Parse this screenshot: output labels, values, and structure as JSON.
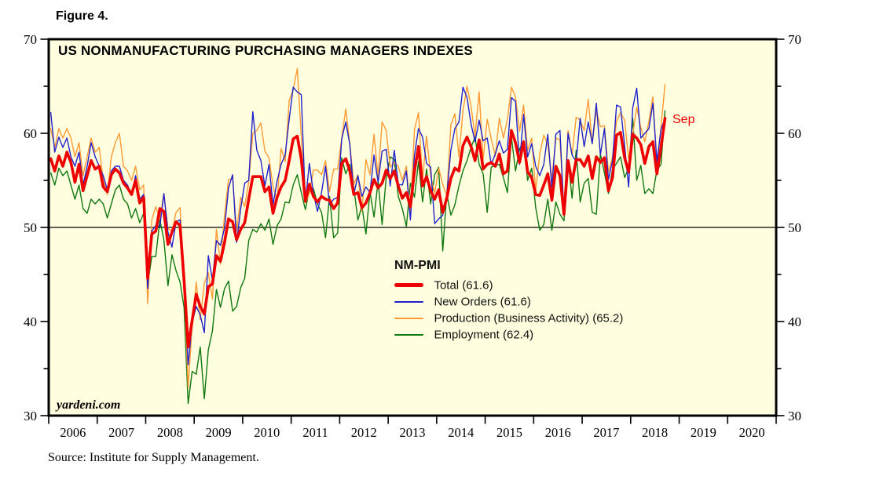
{
  "figure_label": "Figure 4.",
  "title": "US NONMANUFACTURING PURCHASING MANAGERS INDEXES",
  "watermark": "yardeni.com",
  "source": "Source: Institute for Supply Management.",
  "annotation": {
    "label": "Sep",
    "color": "#ee0000"
  },
  "legend": {
    "header": "NM-PMI",
    "entries": [
      {
        "label": "Total (61.6)",
        "color": "#ee0000",
        "thick": true
      },
      {
        "label": "New Orders (61.6)",
        "color": "#2222cc",
        "thick": false
      },
      {
        "label": "Production (Business Activity) (65.2)",
        "color": "#ff9933",
        "thick": false
      },
      {
        "label": "Employment (62.4)",
        "color": "#117711",
        "thick": false
      }
    ]
  },
  "chart_data": {
    "type": "line",
    "title": "US NONMANUFACTURING PURCHASING MANAGERS INDEXES",
    "frequency": "monthly",
    "x_start": "2006-01",
    "x_end": "2018-09",
    "n_points": 153,
    "ylim": [
      30,
      70
    ],
    "yticks_major": [
      30,
      40,
      50,
      60,
      70
    ],
    "yticks_minor": [
      35,
      45,
      55,
      65
    ],
    "x_years": [
      2006,
      2007,
      2008,
      2009,
      2010,
      2011,
      2012,
      2013,
      2014,
      2015,
      2016,
      2017,
      2018,
      2019,
      2020
    ],
    "x_axis_end_year": 2021,
    "reference_line": 50,
    "plot_background": "#ffffe0",
    "grid": "off",
    "legend_position": "center-inside",
    "last_point_label": "Sep",
    "series": [
      {
        "name": "Employment",
        "legend_label": "Employment (62.4)",
        "color": "#117711",
        "stroke_width": 1.4,
        "last_value": 62.4,
        "values": [
          55.8,
          54.5,
          56.3,
          55.5,
          56.0,
          54.5,
          53.0,
          54.5,
          52.0,
          51.5,
          53.0,
          52.5,
          53.0,
          52.5,
          51.0,
          52.5,
          54.0,
          54.5,
          53.0,
          52.5,
          51.0,
          52.0,
          50.5,
          51.5,
          43.9,
          46.9,
          46.9,
          50.8,
          48.7,
          43.8,
          47.1,
          45.4,
          44.2,
          41.5,
          31.3,
          34.7,
          34.4,
          37.3,
          31.8,
          37.0,
          39.0,
          43.4,
          41.5,
          43.5,
          44.3,
          41.1,
          41.6,
          43.6,
          44.6,
          48.6,
          49.8,
          49.5,
          50.4,
          49.7,
          50.9,
          48.2,
          50.2,
          50.9,
          52.7,
          52.6,
          54.5,
          55.6,
          53.7,
          51.9,
          54.0,
          54.1,
          52.5,
          51.6,
          48.9,
          53.3,
          48.9,
          49.4,
          57.4,
          55.7,
          56.7,
          54.2,
          50.8,
          52.3,
          49.3,
          53.8,
          51.1,
          54.9,
          50.3,
          55.3,
          57.5,
          57.2,
          53.3,
          52.0,
          50.1,
          54.7,
          53.2,
          57.0,
          52.7,
          56.2,
          52.5,
          55.6,
          56.4,
          47.5,
          53.6,
          51.3,
          52.4,
          54.4,
          56.0,
          57.1,
          58.5,
          59.6,
          56.7,
          55.7,
          51.6,
          56.4,
          56.6,
          56.7,
          55.3,
          53.7,
          59.6,
          56.0,
          58.3,
          59.2,
          55.0,
          56.3,
          52.1,
          49.7,
          50.3,
          53.0,
          49.7,
          52.7,
          51.4,
          50.7,
          57.2,
          53.1,
          58.2,
          52.7,
          54.7,
          55.2,
          51.6,
          51.4,
          57.8,
          55.8,
          53.6,
          56.2,
          56.8,
          57.5,
          55.3,
          56.3,
          61.6,
          55.0,
          56.6,
          53.6,
          54.1,
          53.6,
          56.1,
          56.7,
          62.4
        ]
      },
      {
        "name": "Production (Business Activity)",
        "legend_label": "Production (Business Activity) (65.2)",
        "color": "#ff9933",
        "stroke_width": 1.4,
        "last_value": 65.2,
        "values": [
          60.5,
          58.5,
          60.5,
          59.5,
          60.5,
          59.5,
          57.5,
          59.0,
          55.5,
          57.5,
          59.5,
          58.0,
          58.5,
          55.0,
          53.5,
          57.5,
          59.0,
          60.0,
          56.5,
          56.0,
          55.0,
          56.5,
          54.0,
          54.5,
          41.9,
          50.8,
          52.2,
          50.9,
          53.6,
          49.9,
          49.6,
          51.6,
          52.1,
          44.2,
          33.0,
          39.6,
          44.2,
          40.2,
          44.1,
          45.2,
          42.4,
          49.8,
          46.1,
          51.3,
          55.1,
          55.2,
          49.6,
          53.2,
          52.2,
          54.8,
          60.0,
          60.3,
          61.1,
          58.1,
          57.4,
          54.4,
          52.8,
          58.4,
          57.0,
          63.5,
          64.6,
          66.9,
          59.7,
          52.6,
          53.6,
          56.1,
          56.1,
          55.6,
          57.1,
          53.8,
          56.2,
          56.2,
          59.5,
          62.6,
          58.9,
          54.6,
          55.6,
          51.7,
          57.2,
          55.6,
          59.9,
          55.4,
          61.2,
          60.3,
          56.4,
          56.9,
          56.5,
          55.0,
          56.5,
          51.7,
          60.4,
          62.2,
          55.1,
          59.7,
          55.5,
          53.6,
          56.3,
          54.6,
          53.4,
          60.9,
          62.1,
          57.5,
          62.4,
          65.0,
          62.9,
          59.7,
          64.4,
          57.2,
          61.5,
          59.4,
          57.6,
          61.6,
          59.5,
          61.5,
          64.9,
          63.9,
          60.2,
          63.0,
          58.2,
          59.5,
          53.9,
          57.8,
          59.8,
          58.8,
          55.1,
          59.5,
          59.3,
          51.8,
          60.3,
          57.7,
          61.7,
          61.4,
          60.3,
          63.6,
          58.9,
          62.4,
          60.7,
          60.8,
          55.9,
          57.5,
          61.3,
          62.2,
          61.4,
          57.3,
          59.8,
          62.8,
          60.6,
          59.1,
          61.3,
          63.9,
          56.5,
          60.7,
          65.2
        ]
      },
      {
        "name": "New Orders",
        "legend_label": "New Orders (61.6)",
        "color": "#2222cc",
        "stroke_width": 1.4,
        "last_value": 61.6,
        "values": [
          62.2,
          58.0,
          59.6,
          58.5,
          59.5,
          57.5,
          56.5,
          58.0,
          54.5,
          56.5,
          59.0,
          57.5,
          56.5,
          55.5,
          54.0,
          56.0,
          56.5,
          56.5,
          55.0,
          54.5,
          53.5,
          55.5,
          53.0,
          53.5,
          43.5,
          49.6,
          50.2,
          50.1,
          53.6,
          49.5,
          47.9,
          50.6,
          50.8,
          44.0,
          35.4,
          39.9,
          41.6,
          40.7,
          38.8,
          47.0,
          44.4,
          48.6,
          48.1,
          49.9,
          54.2,
          55.6,
          48.4,
          52.0,
          54.7,
          55.0,
          62.3,
          58.2,
          57.1,
          54.4,
          56.7,
          52.4,
          54.9,
          56.7,
          57.7,
          61.5,
          64.9,
          64.4,
          64.1,
          52.7,
          56.8,
          53.6,
          51.7,
          53.7,
          56.5,
          52.4,
          53.0,
          53.2,
          59.4,
          61.2,
          58.8,
          53.5,
          55.5,
          53.3,
          54.3,
          53.7,
          57.7,
          54.8,
          58.1,
          58.3,
          54.4,
          58.2,
          54.6,
          54.5,
          56.0,
          50.8,
          57.7,
          60.5,
          59.6,
          56.8,
          56.4,
          50.4,
          50.9,
          51.3,
          53.4,
          58.2,
          60.5,
          61.2,
          64.9,
          63.8,
          61.0,
          59.1,
          61.4,
          59.2,
          59.5,
          56.7,
          57.8,
          59.2,
          57.9,
          58.3,
          63.8,
          63.4,
          56.7,
          62.0,
          57.5,
          58.9,
          56.5,
          55.5,
          56.7,
          59.9,
          54.2,
          59.9,
          60.3,
          51.4,
          60.0,
          57.7,
          57.0,
          61.6,
          58.6,
          61.2,
          58.9,
          63.2,
          57.7,
          60.5,
          55.1,
          57.1,
          63.0,
          62.8,
          58.7,
          54.3,
          62.7,
          64.8,
          59.5,
          60.0,
          60.5,
          63.2,
          57.0,
          60.4,
          61.6
        ]
      },
      {
        "name": "Total",
        "legend_label": "Total (61.6)",
        "color": "#ee0000",
        "stroke_width": 3.6,
        "last_value": 61.6,
        "values": [
          57.3,
          56.0,
          57.6,
          56.5,
          58.0,
          56.9,
          54.8,
          56.7,
          53.9,
          55.5,
          57.1,
          56.2,
          56.5,
          54.3,
          53.8,
          55.6,
          56.2,
          55.8,
          54.7,
          54.2,
          53.5,
          55.0,
          52.6,
          53.2,
          44.6,
          49.3,
          49.6,
          52.0,
          51.7,
          48.2,
          49.5,
          50.6,
          50.2,
          44.4,
          37.3,
          40.1,
          42.9,
          41.6,
          40.8,
          43.7,
          44.0,
          47.0,
          46.4,
          48.4,
          50.9,
          50.6,
          48.7,
          49.8,
          50.5,
          53.0,
          55.4,
          55.4,
          55.4,
          53.8,
          54.3,
          51.5,
          53.2,
          54.3,
          55.0,
          57.1,
          59.4,
          59.7,
          57.3,
          52.8,
          54.6,
          53.3,
          52.7,
          53.3,
          53.0,
          52.9,
          52.0,
          52.6,
          56.8,
          57.3,
          56.0,
          53.5,
          53.7,
          52.1,
          52.6,
          53.7,
          55.1,
          54.2,
          54.7,
          56.1,
          55.2,
          56.0,
          54.4,
          53.1,
          53.7,
          52.2,
          56.0,
          58.6,
          54.4,
          55.4,
          53.9,
          53.0,
          54.0,
          51.6,
          53.1,
          55.2,
          56.3,
          56.0,
          58.7,
          59.6,
          58.6,
          57.1,
          59.3,
          56.2,
          56.7,
          56.9,
          56.5,
          57.8,
          55.7,
          56.0,
          60.3,
          59.0,
          56.9,
          59.1,
          55.9,
          55.3,
          53.5,
          53.4,
          54.5,
          55.7,
          52.9,
          56.5,
          55.5,
          51.4,
          57.1,
          54.8,
          57.2,
          57.2,
          56.5,
          57.6,
          55.2,
          57.5,
          56.9,
          57.4,
          53.9,
          55.3,
          59.8,
          60.1,
          57.4,
          55.9,
          59.9,
          59.5,
          58.8,
          56.8,
          58.6,
          59.1,
          55.7,
          58.5,
          61.6
        ]
      }
    ]
  }
}
